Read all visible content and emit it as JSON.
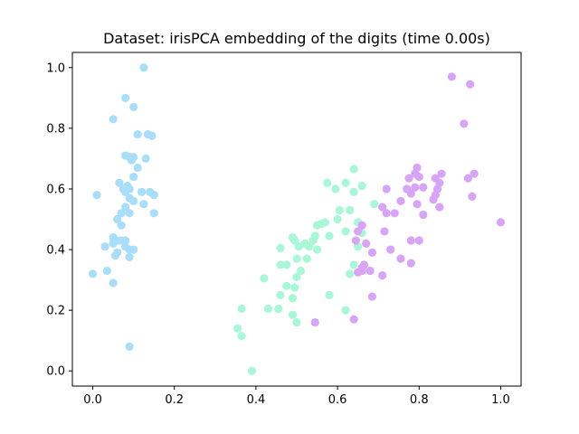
{
  "chart_data": {
    "type": "scatter",
    "title": "Dataset: irisPCA embedding of the digits (time 0.00s)",
    "xlabel": "",
    "ylabel": "",
    "xlim": [
      -0.05,
      1.05
    ],
    "ylim": [
      -0.05,
      1.05
    ],
    "xticks": [
      0.0,
      0.2,
      0.4,
      0.6,
      0.8,
      1.0
    ],
    "yticks": [
      0.0,
      0.2,
      0.4,
      0.6,
      0.8,
      1.0
    ],
    "xtick_labels": [
      "0.0",
      "0.2",
      "0.4",
      "0.6",
      "0.8",
      "1.0"
    ],
    "ytick_labels": [
      "0.0",
      "0.2",
      "0.4",
      "0.6",
      "0.8",
      "1.0"
    ],
    "grid": false,
    "legend": false,
    "series": [
      {
        "color": "#a8def9",
        "points": [
          [
            0.125,
            1.0
          ],
          [
            0.08,
            0.9
          ],
          [
            0.1,
            0.87
          ],
          [
            0.05,
            0.83
          ],
          [
            0.11,
            0.78
          ],
          [
            0.135,
            0.78
          ],
          [
            0.145,
            0.775
          ],
          [
            0.08,
            0.71
          ],
          [
            0.09,
            0.705
          ],
          [
            0.1,
            0.705
          ],
          [
            0.13,
            0.7
          ],
          [
            0.095,
            0.695
          ],
          [
            0.11,
            0.67
          ],
          [
            0.1,
            0.64
          ],
          [
            0.065,
            0.62
          ],
          [
            0.085,
            0.61
          ],
          [
            0.075,
            0.6
          ],
          [
            0.09,
            0.6
          ],
          [
            0.08,
            0.59
          ],
          [
            0.12,
            0.59
          ],
          [
            0.14,
            0.59
          ],
          [
            0.15,
            0.58
          ],
          [
            0.01,
            0.58
          ],
          [
            0.09,
            0.57
          ],
          [
            0.1,
            0.56
          ],
          [
            0.125,
            0.55
          ],
          [
            0.08,
            0.54
          ],
          [
            0.07,
            0.52
          ],
          [
            0.09,
            0.52
          ],
          [
            0.15,
            0.52
          ],
          [
            0.06,
            0.5
          ],
          [
            0.07,
            0.48
          ],
          [
            0.05,
            0.44
          ],
          [
            0.06,
            0.43
          ],
          [
            0.07,
            0.43
          ],
          [
            0.08,
            0.43
          ],
          [
            0.05,
            0.42
          ],
          [
            0.03,
            0.41
          ],
          [
            0.08,
            0.41
          ],
          [
            0.09,
            0.4
          ],
          [
            0.1,
            0.4
          ],
          [
            0.06,
            0.39
          ],
          [
            0.055,
            0.38
          ],
          [
            0.09,
            0.375
          ],
          [
            0.035,
            0.33
          ],
          [
            0.0,
            0.32
          ],
          [
            0.05,
            0.29
          ],
          [
            0.09,
            0.08
          ]
        ]
      },
      {
        "color": "#a8f8d8",
        "points": [
          [
            0.64,
            0.665
          ],
          [
            0.62,
            0.62
          ],
          [
            0.575,
            0.62
          ],
          [
            0.595,
            0.6
          ],
          [
            0.66,
            0.61
          ],
          [
            0.64,
            0.59
          ],
          [
            0.63,
            0.53
          ],
          [
            0.605,
            0.53
          ],
          [
            0.69,
            0.55
          ],
          [
            0.6,
            0.5
          ],
          [
            0.65,
            0.49
          ],
          [
            0.57,
            0.49
          ],
          [
            0.55,
            0.48
          ],
          [
            0.56,
            0.485
          ],
          [
            0.62,
            0.46
          ],
          [
            0.58,
            0.445
          ],
          [
            0.545,
            0.445
          ],
          [
            0.66,
            0.455
          ],
          [
            0.54,
            0.43
          ],
          [
            0.52,
            0.42
          ],
          [
            0.53,
            0.41
          ],
          [
            0.505,
            0.41
          ],
          [
            0.49,
            0.44
          ],
          [
            0.495,
            0.43
          ],
          [
            0.46,
            0.405
          ],
          [
            0.65,
            0.41
          ],
          [
            0.55,
            0.4
          ],
          [
            0.5,
            0.37
          ],
          [
            0.525,
            0.37
          ],
          [
            0.64,
            0.35
          ],
          [
            0.46,
            0.35
          ],
          [
            0.475,
            0.35
          ],
          [
            0.51,
            0.33
          ],
          [
            0.63,
            0.32
          ],
          [
            0.5,
            0.31
          ],
          [
            0.42,
            0.305
          ],
          [
            0.475,
            0.28
          ],
          [
            0.495,
            0.275
          ],
          [
            0.46,
            0.25
          ],
          [
            0.58,
            0.25
          ],
          [
            0.49,
            0.24
          ],
          [
            0.43,
            0.205
          ],
          [
            0.455,
            0.205
          ],
          [
            0.365,
            0.205
          ],
          [
            0.62,
            0.2
          ],
          [
            0.49,
            0.185
          ],
          [
            0.5,
            0.16
          ],
          [
            0.355,
            0.14
          ],
          [
            0.365,
            0.115
          ],
          [
            0.39,
            0.0
          ]
        ]
      },
      {
        "color": "#d8a4f8",
        "points": [
          [
            0.88,
            0.97
          ],
          [
            0.925,
            0.945
          ],
          [
            0.91,
            0.815
          ],
          [
            0.795,
            0.67
          ],
          [
            0.79,
            0.65
          ],
          [
            0.775,
            0.635
          ],
          [
            0.855,
            0.65
          ],
          [
            0.935,
            0.65
          ],
          [
            0.84,
            0.635
          ],
          [
            0.92,
            0.635
          ],
          [
            0.8,
            0.64
          ],
          [
            0.85,
            0.62
          ],
          [
            0.79,
            0.605
          ],
          [
            0.81,
            0.605
          ],
          [
            0.845,
            0.6
          ],
          [
            0.77,
            0.6
          ],
          [
            0.72,
            0.6
          ],
          [
            0.78,
            0.585
          ],
          [
            0.84,
            0.58
          ],
          [
            0.835,
            0.565
          ],
          [
            0.93,
            0.575
          ],
          [
            0.755,
            0.56
          ],
          [
            0.795,
            0.55
          ],
          [
            0.85,
            0.54
          ],
          [
            0.71,
            0.54
          ],
          [
            0.72,
            0.52
          ],
          [
            0.74,
            0.52
          ],
          [
            0.81,
            0.515
          ],
          [
            1.0,
            0.49
          ],
          [
            0.66,
            0.48
          ],
          [
            0.65,
            0.46
          ],
          [
            0.715,
            0.46
          ],
          [
            0.78,
            0.43
          ],
          [
            0.8,
            0.43
          ],
          [
            0.645,
            0.43
          ],
          [
            0.67,
            0.42
          ],
          [
            0.73,
            0.4
          ],
          [
            0.685,
            0.39
          ],
          [
            0.755,
            0.37
          ],
          [
            0.78,
            0.355
          ],
          [
            0.665,
            0.35
          ],
          [
            0.66,
            0.34
          ],
          [
            0.66,
            0.33
          ],
          [
            0.68,
            0.33
          ],
          [
            0.65,
            0.325
          ],
          [
            0.71,
            0.315
          ],
          [
            0.685,
            0.245
          ],
          [
            0.64,
            0.17
          ],
          [
            0.545,
            0.16
          ]
        ]
      }
    ]
  }
}
